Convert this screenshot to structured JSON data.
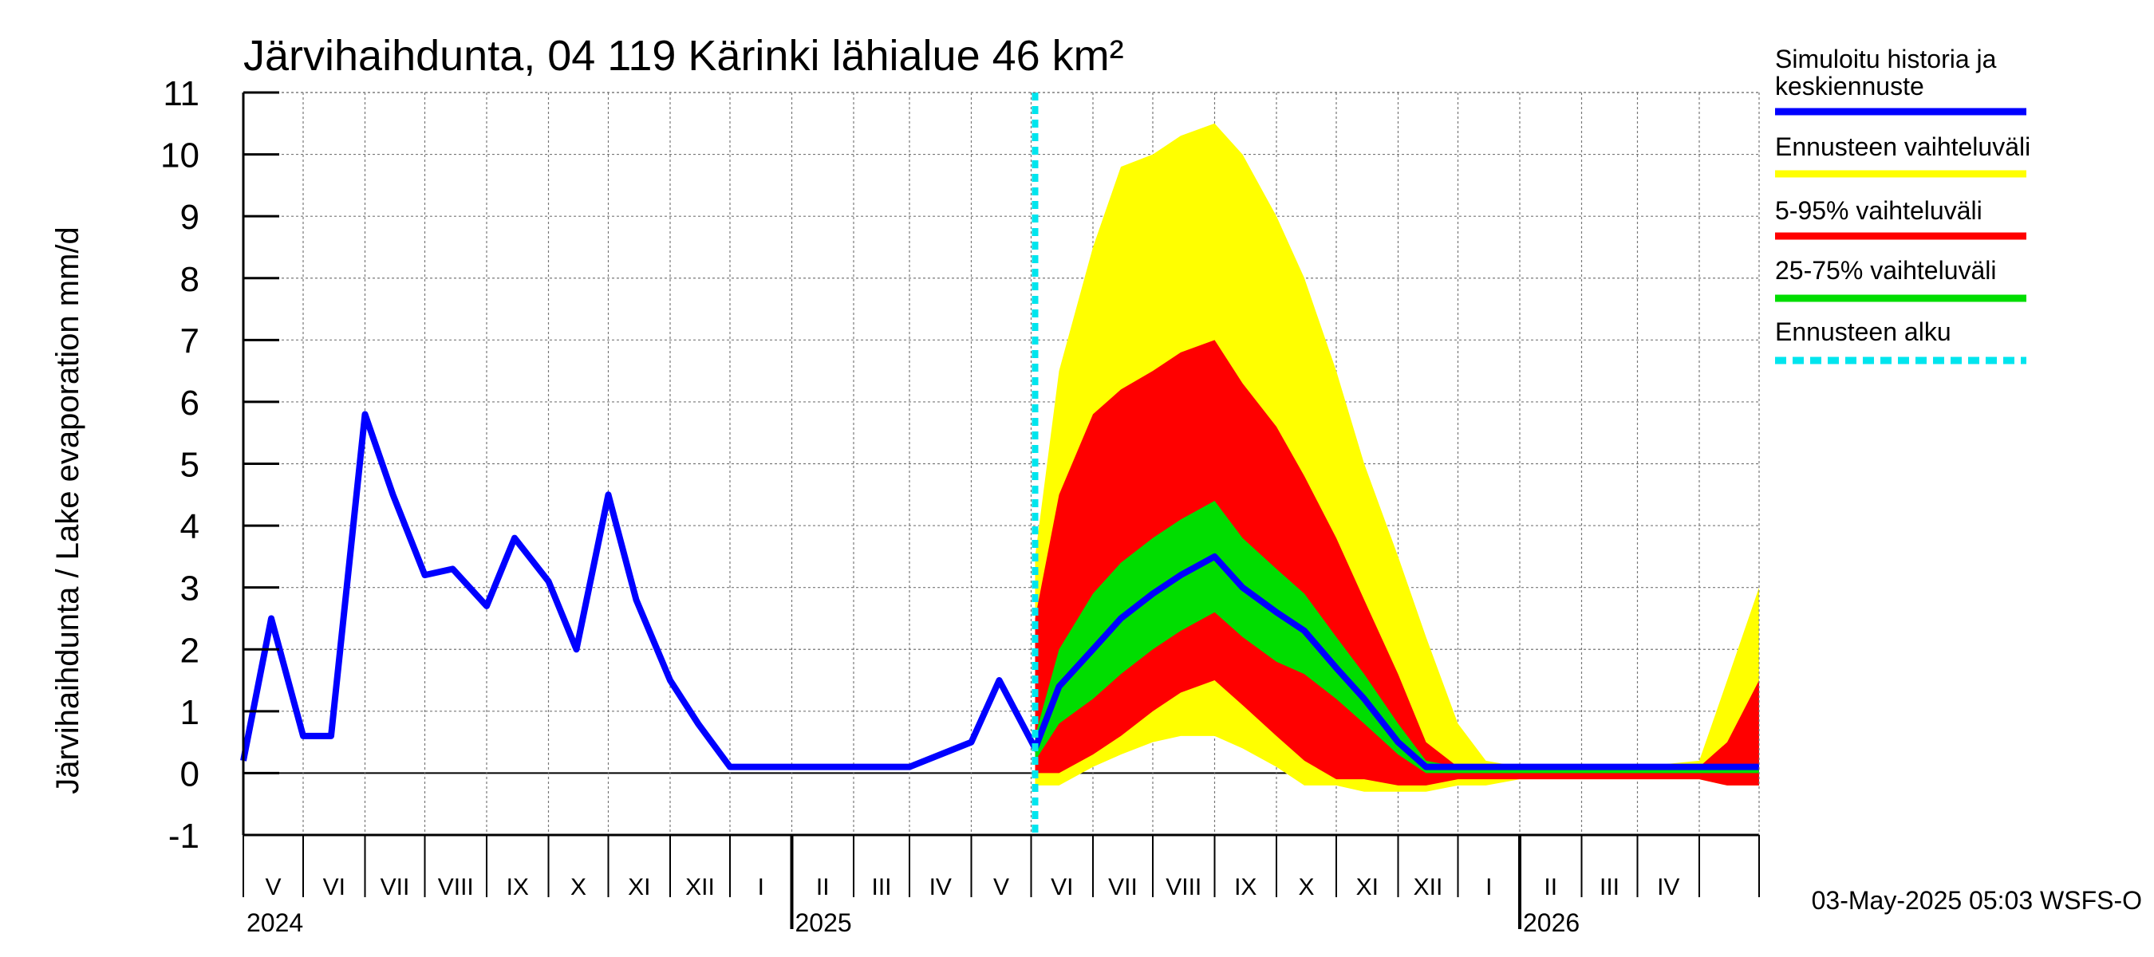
{
  "chart_data": {
    "type": "area",
    "title": "Järvihaihdunta, 04 119 Kärinki lähialue 46 km²",
    "ylabel": "Järvihaihdunta / Lake evaporation   mm/d",
    "ylim": [
      -1,
      11
    ],
    "yticks": [
      -1,
      0,
      1,
      2,
      3,
      4,
      5,
      6,
      7,
      8,
      9,
      10,
      11
    ],
    "xlim": [
      "2024-04-01",
      "2026-05-01"
    ],
    "grid": true,
    "forecast_start": "2025-05-03",
    "x": [
      "2024-04-01",
      "2024-04-15",
      "2024-05-01",
      "2024-05-15",
      "2024-06-01",
      "2024-06-15",
      "2024-07-01",
      "2024-07-15",
      "2024-08-01",
      "2024-08-15",
      "2024-09-01",
      "2024-09-15",
      "2024-10-01",
      "2024-10-15",
      "2024-11-01",
      "2024-11-15",
      "2024-12-01",
      "2024-12-15",
      "2025-01-01",
      "2025-02-01",
      "2025-03-01",
      "2025-04-01",
      "2025-04-15",
      "2025-05-03",
      "2025-05-15",
      "2025-06-01",
      "2025-06-15",
      "2025-07-01",
      "2025-07-15",
      "2025-08-01",
      "2025-08-15",
      "2025-09-01",
      "2025-09-15",
      "2025-10-01",
      "2025-10-15",
      "2025-11-01",
      "2025-11-15",
      "2025-12-01",
      "2025-12-15",
      "2026-01-01",
      "2026-02-01",
      "2026-03-01",
      "2026-04-01",
      "2026-04-15",
      "2026-05-01"
    ],
    "series": [
      {
        "name": "Simuloitu historia ja keskiennuste",
        "color": "#0000ff",
        "values": [
          0.2,
          2.5,
          0.6,
          0.6,
          5.8,
          4.5,
          3.2,
          3.3,
          2.7,
          3.8,
          3.1,
          2.0,
          4.5,
          2.8,
          1.5,
          0.8,
          0.1,
          0.1,
          0.1,
          0.1,
          0.1,
          0.5,
          1.5,
          0.4,
          1.4,
          2.0,
          2.5,
          2.9,
          3.2,
          3.5,
          3.0,
          2.6,
          2.3,
          1.7,
          1.2,
          0.5,
          0.1,
          0.1,
          0.1,
          0.1,
          0.1,
          0.1,
          0.1,
          0.1,
          0.1
        ]
      },
      {
        "name": "Ennusteen vaihteluväli",
        "color": "#ffff00",
        "upper": [
          null,
          null,
          null,
          null,
          null,
          null,
          null,
          null,
          null,
          null,
          null,
          null,
          null,
          null,
          null,
          null,
          null,
          null,
          null,
          null,
          null,
          null,
          null,
          3.5,
          6.5,
          8.5,
          9.8,
          10.0,
          10.3,
          10.5,
          10.0,
          9.0,
          8.0,
          6.5,
          5.0,
          3.5,
          2.2,
          0.8,
          0.2,
          0.1,
          0.1,
          0.1,
          0.2,
          1.5,
          3.0
        ],
        "lower": [
          null,
          null,
          null,
          null,
          null,
          null,
          null,
          null,
          null,
          null,
          null,
          null,
          null,
          null,
          null,
          null,
          null,
          null,
          null,
          null,
          null,
          null,
          null,
          -0.2,
          -0.2,
          0.1,
          0.3,
          0.5,
          0.6,
          0.6,
          0.4,
          0.1,
          -0.2,
          -0.2,
          -0.3,
          -0.3,
          -0.3,
          -0.2,
          -0.2,
          -0.1,
          -0.1,
          -0.1,
          -0.1,
          -0.2,
          -0.2
        ]
      },
      {
        "name": "5-95% vaihteluväli",
        "color": "#ff0000",
        "upper": [
          null,
          null,
          null,
          null,
          null,
          null,
          null,
          null,
          null,
          null,
          null,
          null,
          null,
          null,
          null,
          null,
          null,
          null,
          null,
          null,
          null,
          null,
          null,
          2.5,
          4.5,
          5.8,
          6.2,
          6.5,
          6.8,
          7.0,
          6.3,
          5.6,
          4.8,
          3.8,
          2.8,
          1.6,
          0.5,
          0.1,
          0.1,
          0.1,
          0.1,
          0.1,
          0.1,
          0.5,
          1.5
        ],
        "lower": [
          null,
          null,
          null,
          null,
          null,
          null,
          null,
          null,
          null,
          null,
          null,
          null,
          null,
          null,
          null,
          null,
          null,
          null,
          null,
          null,
          null,
          null,
          null,
          0.0,
          0.0,
          0.3,
          0.6,
          1.0,
          1.3,
          1.5,
          1.1,
          0.6,
          0.2,
          -0.1,
          -0.1,
          -0.2,
          -0.2,
          -0.1,
          -0.1,
          -0.1,
          -0.1,
          -0.1,
          -0.1,
          -0.2,
          -0.2
        ]
      },
      {
        "name": "25-75% vaihteluväli",
        "color": "#00dd00",
        "upper": [
          null,
          null,
          null,
          null,
          null,
          null,
          null,
          null,
          null,
          null,
          null,
          null,
          null,
          null,
          null,
          null,
          null,
          null,
          null,
          null,
          null,
          null,
          null,
          0.6,
          2.0,
          2.9,
          3.4,
          3.8,
          4.1,
          4.4,
          3.8,
          3.3,
          2.9,
          2.2,
          1.6,
          0.8,
          0.2,
          0.1,
          0.1,
          0.1,
          0.1,
          0.1,
          0.1,
          0.1,
          0.1
        ],
        "lower": [
          null,
          null,
          null,
          null,
          null,
          null,
          null,
          null,
          null,
          null,
          null,
          null,
          null,
          null,
          null,
          null,
          null,
          null,
          null,
          null,
          null,
          null,
          null,
          0.2,
          0.8,
          1.2,
          1.6,
          2.0,
          2.3,
          2.6,
          2.2,
          1.8,
          1.6,
          1.2,
          0.8,
          0.3,
          0.0,
          0.0,
          0.0,
          0.0,
          0.0,
          0.0,
          0.0,
          0.0,
          0.0
        ]
      },
      {
        "name": "Ennusteen alku",
        "color": "#00e5ee"
      }
    ],
    "months": [
      "V",
      "VI",
      "VII",
      "VIII",
      "IX",
      "X",
      "XI",
      "XII",
      "I",
      "II",
      "III",
      "IV",
      "V",
      "VI",
      "VII",
      "VIII",
      "IX",
      "X",
      "XI",
      "XII",
      "I",
      "II",
      "III",
      "IV"
    ],
    "years": [
      "2024",
      "2025",
      "2026"
    ],
    "footer": "03-May-2025 05:03 WSFS-O"
  }
}
